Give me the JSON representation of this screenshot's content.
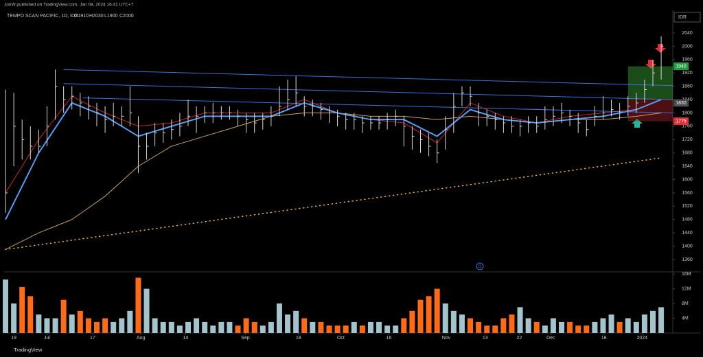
{
  "header": "JonW published on TradingView.com, Jan 08, 2024 16:41 UTC+7",
  "footer": "TradingView",
  "currency": "IDR",
  "chart_data": [
    {
      "type": "ohlc",
      "title": "TEMPO SCAN PACIFIC, 1D, IDX",
      "ohlc_labels": [
        "O1910",
        "H2030",
        "L1900",
        "C2000"
      ],
      "color": "#d9d9d9",
      "x": [
        0,
        1,
        2,
        3,
        4,
        5,
        6,
        7,
        8,
        9,
        10,
        11,
        12,
        13,
        14,
        15,
        16,
        17,
        18,
        19,
        20,
        21,
        22,
        23,
        24,
        25,
        26,
        27,
        28,
        29,
        30,
        31,
        32,
        33,
        34,
        35,
        36,
        37,
        38,
        39,
        40,
        41,
        42,
        43,
        44,
        45,
        46,
        47,
        48,
        49,
        50,
        51,
        52,
        53,
        54,
        55,
        56,
        57,
        58,
        59,
        60,
        61,
        62,
        63,
        64,
        65,
        66,
        67,
        68,
        69,
        70,
        71,
        72,
        73,
        74,
        75,
        76,
        77,
        78,
        79
      ],
      "high": [
        1870,
        1860,
        1780,
        1760,
        1750,
        1820,
        1930,
        1880,
        1880,
        1860,
        1850,
        1830,
        1820,
        1830,
        1820,
        1880,
        1790,
        1740,
        1770,
        1770,
        1780,
        1800,
        1840,
        1820,
        1820,
        1830,
        1820,
        1820,
        1810,
        1800,
        1800,
        1800,
        1820,
        1880,
        1900,
        1910,
        1850,
        1840,
        1830,
        1820,
        1810,
        1800,
        1800,
        1790,
        1790,
        1790,
        1800,
        1810,
        1790,
        1760,
        1750,
        1740,
        1720,
        1790,
        1860,
        1880,
        1880,
        1830,
        1810,
        1800,
        1790,
        1790,
        1780,
        1790,
        1790,
        1820,
        1820,
        1830,
        1810,
        1800,
        1780,
        1820,
        1850,
        1840,
        1830,
        1850,
        1860,
        1900,
        1960,
        2030
      ],
      "low": [
        1500,
        1640,
        1660,
        1660,
        1680,
        1700,
        1780,
        1800,
        1810,
        1790,
        1780,
        1760,
        1740,
        1760,
        1760,
        1760,
        1620,
        1660,
        1700,
        1710,
        1720,
        1730,
        1760,
        1740,
        1770,
        1770,
        1780,
        1780,
        1760,
        1740,
        1740,
        1750,
        1760,
        1790,
        1810,
        1820,
        1790,
        1790,
        1780,
        1770,
        1760,
        1750,
        1750,
        1740,
        1750,
        1750,
        1750,
        1760,
        1700,
        1690,
        1680,
        1670,
        1650,
        1690,
        1740,
        1820,
        1820,
        1760,
        1760,
        1750,
        1740,
        1740,
        1730,
        1740,
        1740,
        1750,
        1760,
        1770,
        1760,
        1740,
        1730,
        1760,
        1780,
        1790,
        1780,
        1790,
        1800,
        1830,
        1880,
        1900
      ],
      "close": [
        1560,
        1760,
        1720,
        1700,
        1700,
        1760,
        1880,
        1840,
        1850,
        1830,
        1820,
        1800,
        1780,
        1790,
        1790,
        1800,
        1700,
        1700,
        1740,
        1740,
        1750,
        1760,
        1790,
        1790,
        1800,
        1800,
        1800,
        1800,
        1790,
        1780,
        1770,
        1780,
        1790,
        1820,
        1840,
        1860,
        1820,
        1820,
        1810,
        1800,
        1790,
        1780,
        1780,
        1770,
        1770,
        1770,
        1780,
        1790,
        1760,
        1730,
        1720,
        1700,
        1680,
        1750,
        1820,
        1860,
        1850,
        1800,
        1790,
        1780,
        1770,
        1760,
        1760,
        1770,
        1760,
        1780,
        1790,
        1800,
        1790,
        1770,
        1750,
        1790,
        1800,
        1810,
        1800,
        1820,
        1830,
        1870,
        1920,
        2000
      ],
      "xlim": [
        -0.25,
        80.4
      ],
      "ylim": [
        1325,
        2108
      ],
      "yticks": [
        1360,
        1400,
        1440,
        1480,
        1520,
        1560,
        1600,
        1640,
        1680,
        1720,
        1760,
        1800,
        1840,
        1880,
        1920,
        1960,
        2000,
        2040
      ],
      "xticks": [
        {
          "value": 1,
          "label": "19"
        },
        {
          "value": 5,
          "label": "Jul"
        },
        {
          "value": 10.5,
          "label": "17"
        },
        {
          "value": 16.3,
          "label": "Aug"
        },
        {
          "value": 21.7,
          "label": "14"
        },
        {
          "value": 28.9,
          "label": "Sep"
        },
        {
          "value": 35.3,
          "label": "18"
        },
        {
          "value": 40.4,
          "label": "Oct"
        },
        {
          "value": 46.2,
          "label": "16"
        },
        {
          "value": 53.1,
          "label": "Nov"
        },
        {
          "value": 57.8,
          "label": "13"
        },
        {
          "value": 61.9,
          "label": "22"
        },
        {
          "value": 65.7,
          "label": "Dec"
        },
        {
          "value": 72.1,
          "label": "18"
        },
        {
          "value": 76.7,
          "label": "2024"
        }
      ],
      "lines": [
        {
          "color": "#c9a15c",
          "width": 1,
          "x": [
            0,
            4,
            8,
            12,
            16,
            20,
            24,
            28,
            32,
            36,
            40,
            44,
            48,
            52,
            56,
            60,
            64,
            68,
            72,
            76,
            79
          ],
          "values": [
            1390,
            1440,
            1480,
            1550,
            1640,
            1700,
            1730,
            1760,
            1790,
            1800,
            1800,
            1790,
            1790,
            1780,
            1790,
            1780,
            1770,
            1780,
            1780,
            1790,
            1800
          ]
        },
        {
          "color": "#c62828",
          "width": 1,
          "x": [
            0,
            4,
            8,
            12,
            16,
            20,
            24,
            28,
            32,
            36,
            40,
            44,
            48,
            52,
            56,
            60,
            64,
            68,
            72,
            76,
            79
          ],
          "values": [
            1560,
            1720,
            1850,
            1800,
            1760,
            1770,
            1800,
            1800,
            1800,
            1840,
            1800,
            1780,
            1770,
            1710,
            1830,
            1790,
            1770,
            1790,
            1800,
            1810,
            1840
          ]
        },
        {
          "color": "#5b9bf0",
          "width": 2,
          "x": [
            0,
            4,
            8,
            12,
            16,
            20,
            24,
            28,
            32,
            36,
            40,
            44,
            48,
            52,
            56,
            60,
            64,
            68,
            72,
            76,
            79
          ],
          "values": [
            1480,
            1680,
            1830,
            1790,
            1730,
            1760,
            1790,
            1790,
            1790,
            1830,
            1800,
            1780,
            1780,
            1730,
            1810,
            1780,
            1770,
            1780,
            1790,
            1810,
            1840
          ]
        },
        {
          "color": "#f5b93a",
          "width": 1.5,
          "dash": "1 5",
          "x": [
            0,
            79
          ],
          "values": [
            1390,
            1665
          ]
        }
      ],
      "trendlines": [
        {
          "color": "#3d6fe0",
          "x": [
            7,
            80.4
          ],
          "values": [
            1930,
            1882
          ]
        },
        {
          "color": "#3d6fe0",
          "x": [
            7,
            80.4
          ],
          "values": [
            1888,
            1840
          ]
        },
        {
          "color": "#3d6fe0",
          "x": [
            9.3,
            80.4
          ],
          "values": [
            1845,
            1800
          ]
        }
      ],
      "zones": [
        {
          "color": "rgba(60,170,60,0.45)",
          "x": [
            75,
            80.4
          ],
          "values": [
            1940,
            1840
          ]
        },
        {
          "color": "rgba(190,40,50,0.4)",
          "x": [
            75,
            80.4
          ],
          "values": [
            1840,
            1775
          ]
        }
      ],
      "price_tags": [
        {
          "value": 1940,
          "color": "#1e9e3e"
        },
        {
          "value": 1830,
          "color": "#4a4a4a"
        },
        {
          "value": 1775,
          "color": "#e0303a"
        }
      ]
    },
    {
      "type": "bar",
      "up_color": "#a3c4cc",
      "down_color": "#ff6a14",
      "values": [
        14500000,
        8000000,
        12500000,
        10000000,
        5000000,
        4000000,
        4000000,
        9000000,
        5000000,
        6000000,
        4000000,
        3000000,
        4000000,
        3000000,
        4000000,
        6000000,
        15000000,
        12000000,
        4000000,
        3000000,
        3000000,
        2000000,
        3000000,
        4000000,
        3000000,
        2000000,
        3000000,
        3000000,
        2000000,
        4000000,
        3000000,
        2000000,
        3000000,
        8000000,
        5000000,
        6000000,
        4000000,
        3000000,
        3000000,
        2000000,
        2000000,
        2000000,
        3000000,
        2000000,
        3000000,
        3000000,
        2000000,
        2000000,
        4000000,
        6000000,
        9000000,
        10000000,
        12000000,
        8000000,
        6000000,
        5000000,
        4000000,
        3000000,
        2000000,
        2000000,
        4000000,
        5000000,
        7000000,
        4000000,
        3000000,
        2000000,
        4000000,
        3000000,
        3000000,
        2000000,
        2000000,
        3000000,
        4000000,
        5000000,
        3000000,
        4000000,
        3000000,
        5000000,
        6000000,
        7000000
      ],
      "ylim": [
        0,
        16400000
      ],
      "yticks": [
        {
          "value": 4000000,
          "label": "4M"
        },
        {
          "value": 8000000,
          "label": "8M"
        },
        {
          "value": 12000000,
          "label": "12M"
        },
        {
          "value": 16000000,
          "label": "16M"
        }
      ]
    }
  ]
}
